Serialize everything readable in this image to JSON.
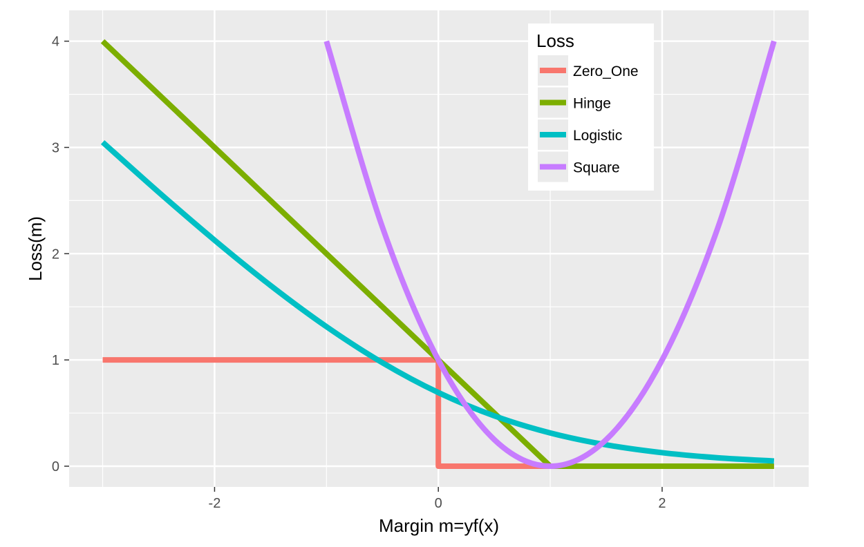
{
  "chart_data": {
    "type": "line",
    "title": "",
    "xlabel": "Margin m=yf(x)",
    "ylabel": "Loss(m)",
    "xlim": [
      -3.3,
      3.31
    ],
    "ylim": [
      -0.195,
      4.29
    ],
    "x_ticks": [
      -2,
      0,
      2
    ],
    "y_ticks": [
      0,
      1,
      2,
      3,
      4
    ],
    "x_minor": [
      -3,
      -1,
      1,
      3
    ],
    "y_minor": [
      0.5,
      1.5,
      2.5,
      3.5
    ],
    "grid": true,
    "legend": {
      "title": "Loss",
      "placement": "top-right-inside"
    },
    "series": [
      {
        "name": "Zero_One",
        "color": "#F8766D",
        "smooth": false,
        "x": [
          -3,
          0,
          0,
          3
        ],
        "y": [
          1,
          1,
          0,
          0
        ]
      },
      {
        "name": "Hinge",
        "color": "#7CAE00",
        "smooth": false,
        "x": [
          -3,
          1,
          3
        ],
        "y": [
          4,
          0,
          0
        ]
      },
      {
        "name": "Logistic",
        "color": "#00BFC4",
        "smooth": true,
        "x": [
          -3,
          -2.5,
          -2,
          -1.5,
          -1,
          -0.5,
          0,
          0.5,
          1,
          1.5,
          2,
          2.5,
          3
        ],
        "y": [
          3.049,
          2.579,
          2.127,
          1.701,
          1.313,
          0.974,
          0.693,
          0.474,
          0.313,
          0.201,
          0.127,
          0.079,
          0.049
        ]
      },
      {
        "name": "Square",
        "color": "#C77CFF",
        "smooth": true,
        "x": [
          -1,
          -0.5,
          0,
          0.5,
          1,
          1.5,
          2,
          2.5,
          3
        ],
        "y": [
          4,
          2.25,
          1,
          0.25,
          0,
          0.25,
          1,
          2.25,
          4
        ]
      }
    ]
  }
}
